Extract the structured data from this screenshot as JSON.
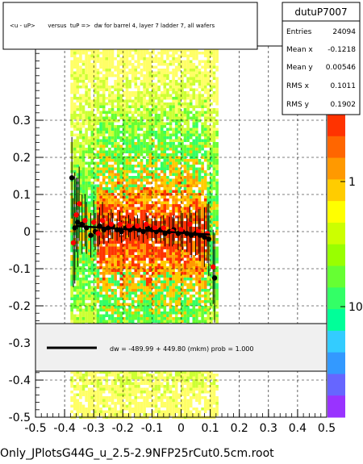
{
  "title": "<u - uP>       versus  tuP =>  dw for barrel 4, layer 7 ladder 7, all wafers",
  "footer": "Only_JPlotsG44G_u_2.5-2.9NFP25rCut0.5cm.root",
  "stats": {
    "name": "dutuP7007",
    "rows": [
      {
        "label": "Entries",
        "value": "24094"
      },
      {
        "label": "Mean x",
        "value": "-0.1218"
      },
      {
        "label": "Mean y",
        "value": "0.00546"
      },
      {
        "label": "RMS x",
        "value": "0.1011"
      },
      {
        "label": "RMS y",
        "value": "0.1902"
      }
    ]
  },
  "fit_legend": "dw = -489.99 + 449.80 (mkm) prob = 1.000",
  "colors": {
    "fit_line": "#000000",
    "profile_black": "#000000",
    "profile_red": "#ff0000",
    "legend_bg": "#f0f0f0",
    "palette": [
      "#ffff66",
      "#ccff33",
      "#66ff33",
      "#33ff66",
      "#ffcc00",
      "#ff9900",
      "#ff3300"
    ]
  },
  "chart_data": {
    "type": "scatter",
    "x_axis": {
      "range": [
        -0.5,
        0.5
      ],
      "ticks": [
        "-0.5",
        "-0.4",
        "-0.3",
        "-0.2",
        "-0.1",
        "0",
        "0.1",
        "0.2",
        "0.3",
        "0.4",
        "0.5"
      ]
    },
    "y_axis": {
      "range": [
        -0.5,
        0.5
      ],
      "ticks": [
        "-0.5",
        "-0.4",
        "-0.3",
        "-0.2",
        "-0.1",
        "0",
        "0.1",
        "0.2",
        "0.3"
      ]
    },
    "z_axis": {
      "scale": "log",
      "tick_labels": [
        "1",
        "10"
      ]
    },
    "grid": true,
    "density_band": {
      "x_range": [
        -0.38,
        0.12
      ]
    },
    "series": [
      {
        "color": "black",
        "points": [
          {
            "x": -0.375,
            "y": 0.145,
            "err": 0.11
          },
          {
            "x": -0.365,
            "y": 0.01,
            "err": 0.15
          },
          {
            "x": -0.355,
            "y": 0.025,
            "err": 0.12
          },
          {
            "x": -0.34,
            "y": 0.02,
            "err": 0.08
          },
          {
            "x": -0.325,
            "y": 0.01,
            "err": 0.07
          },
          {
            "x": -0.31,
            "y": -0.01,
            "err": 0.06
          },
          {
            "x": -0.295,
            "y": 0.0,
            "err": 0.05
          },
          {
            "x": -0.28,
            "y": 0.015,
            "err": 0.05
          },
          {
            "x": -0.265,
            "y": 0.005,
            "err": 0.04
          },
          {
            "x": -0.25,
            "y": 0.01,
            "err": 0.04
          },
          {
            "x": -0.235,
            "y": 0.015,
            "err": 0.035
          },
          {
            "x": -0.22,
            "y": 0.005,
            "err": 0.03
          },
          {
            "x": -0.205,
            "y": 0.0,
            "err": 0.03
          },
          {
            "x": -0.19,
            "y": 0.01,
            "err": 0.03
          },
          {
            "x": -0.175,
            "y": 0.005,
            "err": 0.03
          },
          {
            "x": -0.16,
            "y": 0.01,
            "err": 0.03
          },
          {
            "x": -0.145,
            "y": 0.005,
            "err": 0.03
          },
          {
            "x": -0.13,
            "y": 0.0,
            "err": 0.03
          },
          {
            "x": -0.115,
            "y": 0.01,
            "err": 0.03
          },
          {
            "x": -0.1,
            "y": 0.005,
            "err": 0.03
          },
          {
            "x": -0.085,
            "y": 0.0,
            "err": 0.03
          },
          {
            "x": -0.07,
            "y": 0.005,
            "err": 0.035
          },
          {
            "x": -0.055,
            "y": -0.005,
            "err": 0.035
          },
          {
            "x": -0.04,
            "y": 0.0,
            "err": 0.04
          },
          {
            "x": -0.025,
            "y": 0.005,
            "err": 0.04
          },
          {
            "x": -0.01,
            "y": -0.005,
            "err": 0.045
          },
          {
            "x": 0.005,
            "y": 0.0,
            "err": 0.05
          },
          {
            "x": 0.02,
            "y": -0.005,
            "err": 0.05
          },
          {
            "x": 0.035,
            "y": -0.01,
            "err": 0.06
          },
          {
            "x": 0.05,
            "y": -0.005,
            "err": 0.06
          },
          {
            "x": 0.065,
            "y": -0.01,
            "err": 0.07
          },
          {
            "x": 0.08,
            "y": -0.015,
            "err": 0.08
          },
          {
            "x": 0.095,
            "y": -0.02,
            "err": 0.1
          },
          {
            "x": 0.115,
            "y": -0.125,
            "err": 0.12
          }
        ]
      },
      {
        "color": "red",
        "points": [
          {
            "x": -0.37,
            "y": -0.03,
            "err": 0.12
          },
          {
            "x": -0.36,
            "y": 0.045,
            "err": 0.1
          },
          {
            "x": -0.35,
            "y": 0.075,
            "err": 0.1
          },
          {
            "x": -0.33,
            "y": 0.03,
            "err": 0.07
          },
          {
            "x": -0.3,
            "y": 0.025,
            "err": 0.06
          },
          {
            "x": -0.285,
            "y": -0.005,
            "err": 0.05
          },
          {
            "x": -0.27,
            "y": 0.03,
            "err": 0.05
          },
          {
            "x": -0.24,
            "y": 0.02,
            "err": 0.04
          },
          {
            "x": -0.21,
            "y": 0.02,
            "err": 0.035
          },
          {
            "x": -0.18,
            "y": 0.015,
            "err": 0.03
          },
          {
            "x": -0.15,
            "y": 0.015,
            "err": 0.03
          },
          {
            "x": -0.12,
            "y": 0.02,
            "err": 0.03
          },
          {
            "x": -0.09,
            "y": 0.01,
            "err": 0.03
          },
          {
            "x": -0.06,
            "y": 0.01,
            "err": 0.035
          },
          {
            "x": -0.03,
            "y": 0.0,
            "err": 0.04
          },
          {
            "x": 0.0,
            "y": 0.005,
            "err": 0.045
          },
          {
            "x": 0.03,
            "y": 0.02,
            "err": 0.05
          },
          {
            "x": 0.06,
            "y": 0.0,
            "err": 0.06
          },
          {
            "x": 0.09,
            "y": -0.005,
            "err": 0.08
          },
          {
            "x": 0.11,
            "y": -0.095,
            "err": 0.1
          }
        ]
      }
    ],
    "fit": {
      "intercept_mkm": -489.99,
      "slope_mkm": 449.8
    }
  }
}
